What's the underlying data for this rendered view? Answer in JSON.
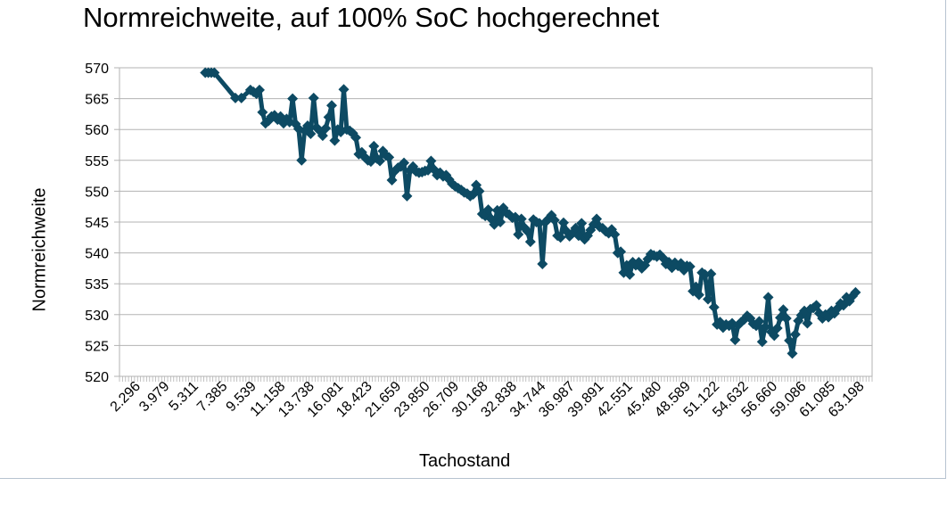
{
  "chart_data": {
    "type": "line",
    "title": "Normreichweite, auf 100% SoC hochgerechnet",
    "xlabel": "Tachostand",
    "ylabel": "Normreichweite",
    "ylim": [
      520,
      570
    ],
    "yticks": [
      "520",
      "525",
      "530",
      "535",
      "540",
      "545",
      "550",
      "555",
      "560",
      "565",
      "570"
    ],
    "xtick_labels": [
      "2.296",
      "3.979",
      "5.311",
      "7.385",
      "9.539",
      "11.158",
      "13.738",
      "16.081",
      "18.423",
      "21.659",
      "23.850",
      "26.709",
      "30.168",
      "32.838",
      "34.744",
      "36.987",
      "39.891",
      "42.551",
      "45.480",
      "48.589",
      "51.122",
      "54.632",
      "56.660",
      "59.086",
      "61.085",
      "63.198"
    ],
    "grid": true,
    "legend": "none",
    "series_color": "#0d4a63",
    "category_count": 250,
    "series": [
      {
        "points": [
          [
            28,
            569.2
          ],
          [
            29,
            569.2
          ],
          [
            30,
            569.2
          ],
          [
            31,
            569.2
          ],
          [
            38,
            565.1
          ],
          [
            40,
            565.1
          ],
          [
            43,
            566.4
          ],
          [
            44,
            566.1
          ],
          [
            45,
            565.8
          ],
          [
            46,
            566.4
          ],
          [
            47,
            562.8
          ],
          [
            48,
            561.0
          ],
          [
            49,
            561.4
          ],
          [
            50,
            562.1
          ],
          [
            51,
            562.3
          ],
          [
            52,
            561.6
          ],
          [
            53,
            562.1
          ],
          [
            54,
            561.0
          ],
          [
            55,
            561.7
          ],
          [
            56,
            561.2
          ],
          [
            57,
            565.0
          ],
          [
            58,
            560.9
          ],
          [
            59,
            560.1
          ],
          [
            60,
            555.0
          ],
          [
            61,
            559.8
          ],
          [
            62,
            560.6
          ],
          [
            63,
            559.3
          ],
          [
            64,
            565.1
          ],
          [
            65,
            560.3
          ],
          [
            66,
            559.8
          ],
          [
            67,
            559.0
          ],
          [
            68,
            560.2
          ],
          [
            69,
            562.0
          ],
          [
            70,
            563.9
          ],
          [
            71,
            558.2
          ],
          [
            72,
            560.0
          ],
          [
            73,
            559.6
          ],
          [
            74,
            566.5
          ],
          [
            75,
            560.0
          ],
          [
            76,
            559.8
          ],
          [
            77,
            559.4
          ],
          [
            78,
            558.7
          ],
          [
            79,
            556.0
          ],
          [
            80,
            556.3
          ],
          [
            81,
            555.5
          ],
          [
            82,
            555.0
          ],
          [
            83,
            554.8
          ],
          [
            84,
            557.3
          ],
          [
            85,
            555.3
          ],
          [
            86,
            554.9
          ],
          [
            87,
            556.5
          ],
          [
            88,
            555.8
          ],
          [
            89,
            555.5
          ],
          [
            90,
            551.8
          ],
          [
            91,
            553.3
          ],
          [
            92,
            553.8
          ],
          [
            93,
            554.0
          ],
          [
            94,
            554.6
          ],
          [
            95,
            549.2
          ],
          [
            96,
            553.4
          ],
          [
            97,
            554.0
          ],
          [
            98,
            553.2
          ],
          [
            99,
            553.0
          ],
          [
            100,
            553.1
          ],
          [
            101,
            553.3
          ],
          [
            102,
            553.4
          ],
          [
            103,
            554.9
          ],
          [
            104,
            553.5
          ],
          [
            105,
            552.6
          ],
          [
            106,
            553.0
          ],
          [
            107,
            552.4
          ],
          [
            108,
            552.6
          ],
          [
            109,
            551.9
          ],
          [
            110,
            551.2
          ],
          [
            111,
            550.8
          ],
          [
            112,
            550.5
          ],
          [
            113,
            550.2
          ],
          [
            114,
            549.8
          ],
          [
            115,
            549.6
          ],
          [
            116,
            549.2
          ],
          [
            117,
            549.5
          ],
          [
            118,
            551.0
          ],
          [
            119,
            550.0
          ],
          [
            120,
            546.3
          ],
          [
            121,
            546.0
          ],
          [
            122,
            547.0
          ],
          [
            123,
            545.5
          ],
          [
            124,
            544.6
          ],
          [
            125,
            546.9
          ],
          [
            126,
            545.0
          ],
          [
            127,
            547.3
          ],
          [
            128,
            546.5
          ],
          [
            129,
            546.2
          ],
          [
            130,
            545.7
          ],
          [
            131,
            545.8
          ],
          [
            132,
            543.0
          ],
          [
            133,
            545.5
          ],
          [
            134,
            544.1
          ],
          [
            135,
            543.5
          ],
          [
            136,
            541.8
          ],
          [
            137,
            545.4
          ],
          [
            138,
            545.0
          ],
          [
            139,
            544.8
          ],
          [
            140,
            538.2
          ],
          [
            141,
            545.0
          ],
          [
            142,
            545.5
          ],
          [
            143,
            546.1
          ],
          [
            144,
            545.3
          ],
          [
            145,
            542.8
          ],
          [
            146,
            542.5
          ],
          [
            147,
            544.9
          ],
          [
            148,
            543.5
          ],
          [
            149,
            542.7
          ],
          [
            150,
            543.2
          ],
          [
            151,
            544.0
          ],
          [
            152,
            542.8
          ],
          [
            153,
            544.8
          ],
          [
            154,
            542.2
          ],
          [
            155,
            542.8
          ],
          [
            156,
            543.7
          ],
          [
            157,
            544.6
          ],
          [
            158,
            545.5
          ],
          [
            159,
            544.2
          ],
          [
            160,
            544.0
          ],
          [
            161,
            543.5
          ],
          [
            162,
            543.2
          ],
          [
            163,
            543.8
          ],
          [
            164,
            543.0
          ],
          [
            165,
            540.0
          ],
          [
            166,
            540.2
          ],
          [
            167,
            536.8
          ],
          [
            168,
            538.0
          ],
          [
            169,
            536.5
          ],
          [
            170,
            538.5
          ],
          [
            171,
            538.0
          ],
          [
            172,
            538.5
          ],
          [
            173,
            537.5
          ],
          [
            174,
            538.0
          ],
          [
            175,
            539.0
          ],
          [
            176,
            539.8
          ],
          [
            177,
            539.6
          ],
          [
            178,
            539.4
          ],
          [
            179,
            539.7
          ],
          [
            180,
            539.2
          ],
          [
            181,
            538.2
          ],
          [
            182,
            538.5
          ],
          [
            183,
            537.6
          ],
          [
            184,
            538.4
          ],
          [
            185,
            537.9
          ],
          [
            186,
            538.3
          ],
          [
            187,
            537.2
          ],
          [
            188,
            537.9
          ],
          [
            189,
            537.8
          ],
          [
            190,
            533.8
          ],
          [
            191,
            534.5
          ],
          [
            192,
            533.2
          ],
          [
            193,
            536.8
          ],
          [
            194,
            536.5
          ],
          [
            195,
            532.5
          ],
          [
            196,
            536.6
          ],
          [
            197,
            531.2
          ],
          [
            198,
            528.4
          ],
          [
            199,
            528.8
          ],
          [
            200,
            527.9
          ],
          [
            201,
            528.4
          ],
          [
            202,
            528.2
          ],
          [
            203,
            528.6
          ],
          [
            204,
            525.9
          ],
          [
            205,
            528.3
          ],
          [
            206,
            528.8
          ],
          [
            207,
            529.2
          ],
          [
            208,
            529.8
          ],
          [
            209,
            529.4
          ],
          [
            210,
            528.5
          ],
          [
            211,
            528.2
          ],
          [
            212,
            528.9
          ],
          [
            213,
            525.6
          ],
          [
            214,
            528.0
          ],
          [
            215,
            532.8
          ],
          [
            216,
            527.2
          ],
          [
            217,
            526.6
          ],
          [
            218,
            527.8
          ],
          [
            219,
            529.5
          ],
          [
            220,
            530.8
          ],
          [
            221,
            529.4
          ],
          [
            222,
            525.8
          ],
          [
            223,
            523.7
          ],
          [
            224,
            526.8
          ],
          [
            225,
            529.0
          ],
          [
            226,
            529.9
          ],
          [
            227,
            530.6
          ],
          [
            228,
            528.6
          ],
          [
            229,
            530.9
          ],
          [
            230,
            531.1
          ],
          [
            231,
            531.5
          ],
          [
            232,
            530.2
          ],
          [
            233,
            529.4
          ],
          [
            234,
            530.0
          ],
          [
            235,
            529.6
          ],
          [
            236,
            530.6
          ],
          [
            237,
            530.2
          ],
          [
            238,
            531.0
          ],
          [
            239,
            531.8
          ],
          [
            240,
            531.5
          ],
          [
            241,
            532.8
          ],
          [
            242,
            532.2
          ],
          [
            243,
            533.0
          ],
          [
            244,
            533.6
          ]
        ]
      }
    ]
  }
}
